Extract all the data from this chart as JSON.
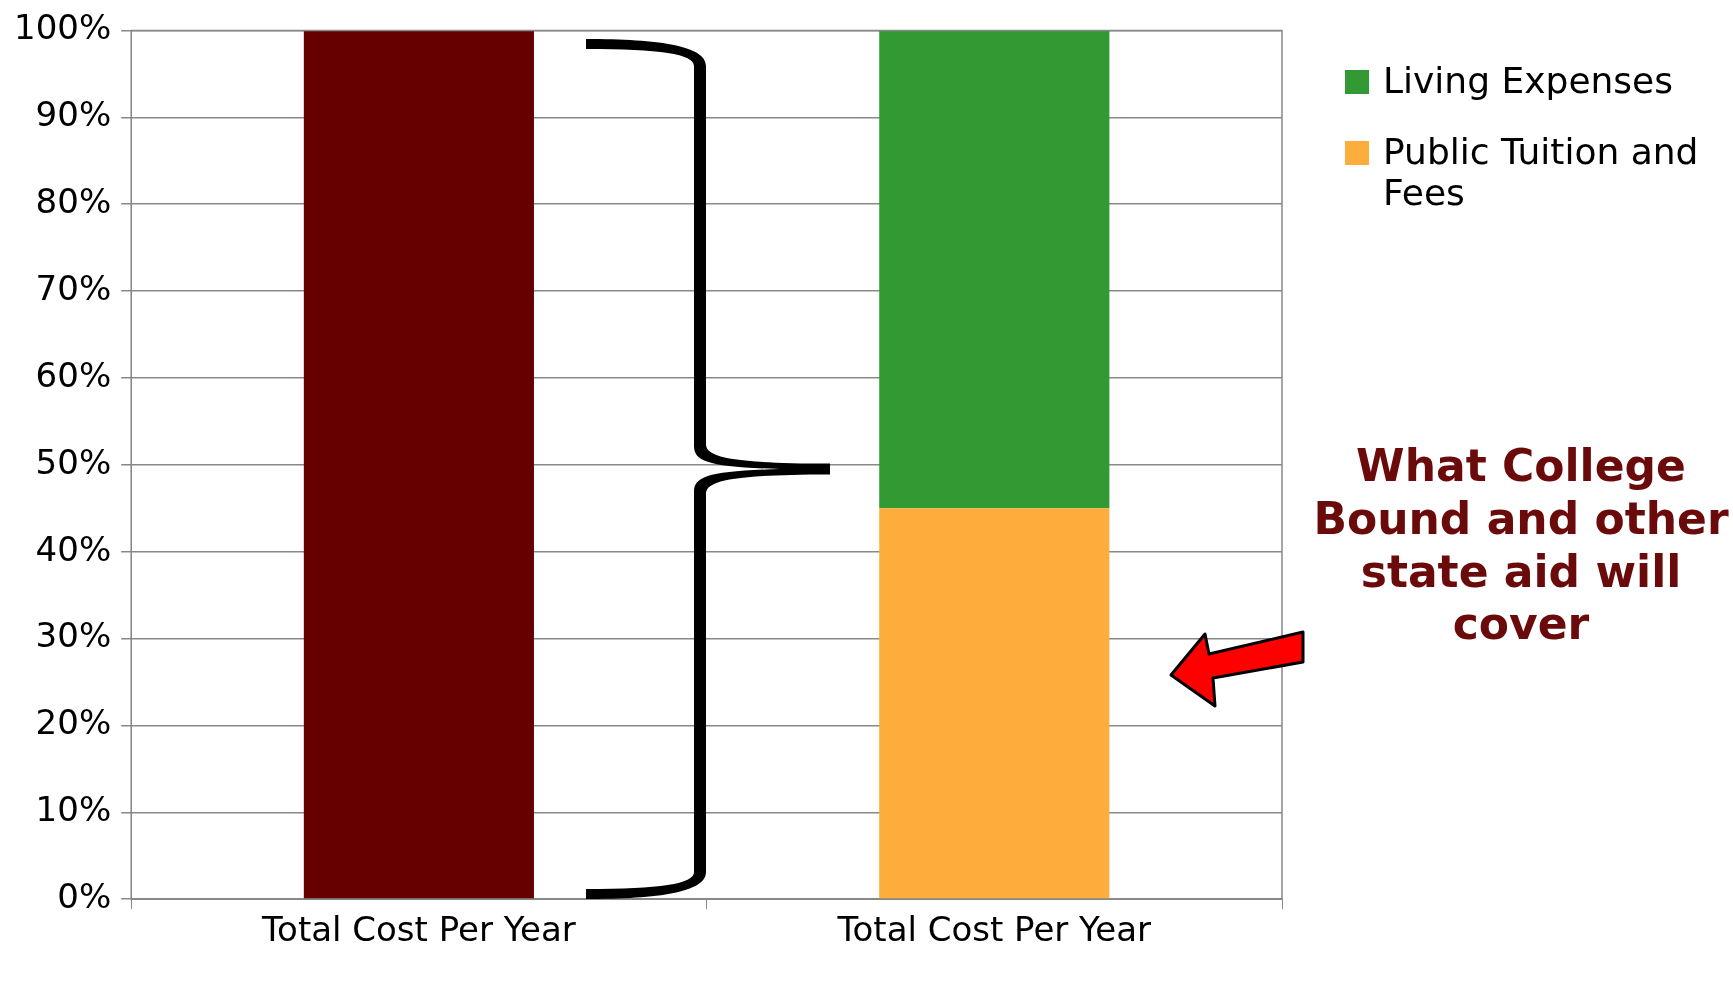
{
  "chart_data": {
    "type": "bar",
    "stacked": true,
    "categories": [
      "Total Cost Per Year",
      "Total Cost Per Year"
    ],
    "series": [
      {
        "color": "#660000",
        "values": [
          100,
          null
        ]
      },
      {
        "name": "Public Tuition and Fees",
        "color": "#fcad3c",
        "values": [
          null,
          45
        ]
      },
      {
        "name": "Living Expenses",
        "color": "#339933",
        "values": [
          null,
          55
        ]
      }
    ],
    "ylim": [
      0,
      100
    ],
    "yticks": [
      {
        "value": 0,
        "label": "0%"
      },
      {
        "value": 10,
        "label": "10%"
      },
      {
        "value": 20,
        "label": "20%"
      },
      {
        "value": 30,
        "label": "30%"
      },
      {
        "value": 40,
        "label": "40%"
      },
      {
        "value": 50,
        "label": "50%"
      },
      {
        "value": 60,
        "label": "60%"
      },
      {
        "value": 70,
        "label": "70%"
      },
      {
        "value": 80,
        "label": "80%"
      },
      {
        "value": 90,
        "label": "90%"
      },
      {
        "value": 100,
        "label": "100%"
      }
    ],
    "grid": "y",
    "legend": "right",
    "annotations": [
      "What College Bound and other state aid will cover"
    ]
  }
}
